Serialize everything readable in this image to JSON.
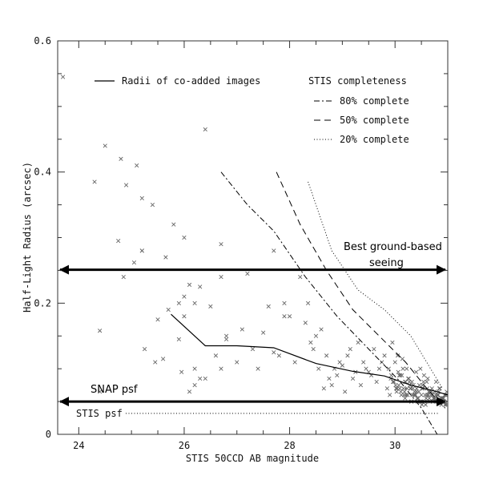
{
  "chart_data": {
    "type": "scatter",
    "xlabel": "STIS 50CCD AB magnitude",
    "ylabel": "Half-Light Radius (arcsec)",
    "xlim": [
      23.6,
      31
    ],
    "ylim": [
      0,
      0.6
    ],
    "x_ticks": [
      24,
      26,
      28,
      30
    ],
    "y_ticks": [
      0,
      0.2,
      0.4,
      0.6
    ],
    "grid": false,
    "legend": {
      "position": "top-right",
      "radii_label": "Radii of co-added images",
      "completeness_title": "STIS completeness",
      "entries": [
        {
          "label": "80% complete",
          "style": "dashdot"
        },
        {
          "label": "50% complete",
          "style": "dashed"
        },
        {
          "label": "20% complete",
          "style": "dotted"
        }
      ]
    },
    "series": [
      {
        "name": "Radii of co-added images",
        "style": "solid",
        "x": [
          25.75,
          26.4,
          27.0,
          27.7,
          28.5,
          29.2,
          29.8,
          30.3,
          30.8,
          31.0
        ],
        "y": [
          0.183,
          0.135,
          0.135,
          0.132,
          0.108,
          0.096,
          0.089,
          0.075,
          0.065,
          0.06
        ]
      },
      {
        "name": "80% complete",
        "style": "dashdot",
        "x": [
          26.7,
          27.2,
          27.7,
          28.3,
          28.9,
          29.5,
          30.1,
          30.5,
          30.8
        ],
        "y": [
          0.4,
          0.35,
          0.31,
          0.24,
          0.18,
          0.13,
          0.08,
          0.04,
          0.0
        ]
      },
      {
        "name": "50% complete",
        "style": "dashed",
        "x": [
          27.75,
          28.2,
          28.7,
          29.2,
          29.7,
          30.2,
          30.6,
          30.95
        ],
        "y": [
          0.4,
          0.32,
          0.25,
          0.19,
          0.15,
          0.11,
          0.07,
          0.04
        ]
      },
      {
        "name": "20% complete",
        "style": "dotted",
        "x": [
          28.35,
          28.8,
          29.3,
          29.8,
          30.3,
          30.6,
          30.9
        ],
        "y": [
          0.385,
          0.28,
          0.22,
          0.19,
          0.15,
          0.11,
          0.07
        ]
      }
    ],
    "reference_lines": [
      {
        "label": "Best ground-based seeing",
        "y": 0.251,
        "style": "double-arrow"
      },
      {
        "label": "SNAP psf",
        "y": 0.05,
        "style": "double-arrow"
      },
      {
        "label": "STIS psf",
        "y": 0.032,
        "style": "dotted"
      }
    ],
    "points_x": [
      23.7,
      24.3,
      24.5,
      24.8,
      25.1,
      25.2,
      24.9,
      25.4,
      25.8,
      26.0,
      26.4,
      26.7,
      24.4,
      24.75,
      25.05,
      25.2,
      25.5,
      25.65,
      25.9,
      26.1,
      26.3,
      26.7,
      27.2,
      27.6,
      24.85,
      25.2,
      25.7,
      26.0,
      26.2,
      26.5,
      26.8,
      25.45,
      25.25,
      25.6,
      25.9,
      26.2,
      26.6,
      27.0,
      27.4,
      27.8,
      26.2,
      26.4,
      26.1,
      26.8,
      27.1,
      27.5,
      27.9,
      26.0,
      25.95,
      26.3,
      26.7,
      27.3,
      27.7,
      24.4,
      27.7,
      28.2,
      27.9,
      28.3,
      28.0,
      28.35,
      28.1,
      28.4,
      28.5,
      28.7,
      28.6,
      29.3,
      29.0,
      29.6,
      28.9,
      29.4,
      28.8,
      29.8,
      29.2,
      29.5,
      28.55,
      29.1,
      29.7,
      28.45,
      29.95,
      28.75,
      29.35,
      29.55,
      29.05,
      29.85,
      29.25,
      28.95,
      29.65,
      28.65,
      29.45,
      29.9,
      29.15,
      29.75,
      28.85,
      30.0,
      30.1,
      30.2,
      30.3,
      30.4,
      30.5,
      30.6,
      30.7,
      30.8,
      30.9,
      30.05,
      30.15,
      30.25,
      30.35,
      30.45,
      30.55,
      30.65,
      30.75,
      30.85,
      30.95,
      30.02,
      30.12,
      30.22,
      30.32,
      30.42,
      30.52,
      30.62,
      30.72,
      30.82,
      30.92,
      30.08,
      30.18,
      30.28,
      30.38,
      30.48,
      30.58,
      30.68,
      30.78,
      30.88,
      30.98,
      29.92,
      30.04,
      30.14,
      30.24,
      30.34,
      30.44,
      30.54,
      30.64,
      30.74,
      30.84,
      30.94,
      29.88,
      29.98,
      30.06,
      30.16,
      30.26,
      30.36,
      30.46,
      30.56,
      30.66,
      30.76,
      30.86,
      30.96,
      30.03,
      30.13,
      30.23,
      30.33,
      30.43,
      30.53,
      30.63,
      30.73,
      30.83,
      30.93,
      30.07,
      30.17,
      30.27,
      30.37,
      30.47,
      30.57,
      30.67,
      30.77,
      30.87,
      30.97,
      29.93,
      30.09,
      30.19,
      30.29,
      30.39,
      30.49,
      30.59,
      30.69,
      30.79,
      30.89,
      30.99,
      29.96,
      30.11,
      30.21,
      30.31,
      30.41,
      30.51,
      30.61,
      30.71,
      30.81,
      30.91,
      30.01,
      30.19,
      30.41,
      30.61,
      30.81,
      30.21,
      30.51,
      30.71,
      30.91,
      30.31
    ],
    "points_y": [
      0.545,
      0.385,
      0.44,
      0.42,
      0.41,
      0.36,
      0.38,
      0.35,
      0.32,
      0.3,
      0.465,
      0.29,
      0.158,
      0.295,
      0.262,
      0.28,
      0.175,
      0.27,
      0.2,
      0.228,
      0.225,
      0.24,
      0.245,
      0.195,
      0.24,
      0.28,
      0.19,
      0.21,
      0.2,
      0.195,
      0.15,
      0.11,
      0.13,
      0.115,
      0.145,
      0.1,
      0.12,
      0.11,
      0.1,
      0.12,
      0.075,
      0.085,
      0.065,
      0.145,
      0.16,
      0.155,
      0.18,
      0.18,
      0.095,
      0.085,
      0.1,
      0.13,
      0.125,
      0.065,
      0.28,
      0.24,
      0.2,
      0.17,
      0.18,
      0.2,
      0.11,
      0.14,
      0.15,
      0.12,
      0.16,
      0.14,
      0.105,
      0.13,
      0.09,
      0.11,
      0.075,
      0.12,
      0.085,
      0.095,
      0.1,
      0.12,
      0.1,
      0.13,
      0.14,
      0.085,
      0.075,
      0.09,
      0.065,
      0.07,
      0.095,
      0.11,
      0.08,
      0.07,
      0.1,
      0.06,
      0.13,
      0.11,
      0.1,
      0.11,
      0.09,
      0.08,
      0.07,
      0.095,
      0.06,
      0.08,
      0.07,
      0.06,
      0.05,
      0.12,
      0.1,
      0.085,
      0.075,
      0.065,
      0.09,
      0.055,
      0.065,
      0.07,
      0.045,
      0.07,
      0.06,
      0.1,
      0.08,
      0.055,
      0.075,
      0.085,
      0.05,
      0.06,
      0.055,
      0.09,
      0.065,
      0.075,
      0.06,
      0.1,
      0.045,
      0.06,
      0.08,
      0.045,
      0.065,
      0.085,
      0.07,
      0.115,
      0.06,
      0.07,
      0.055,
      0.08,
      0.065,
      0.055,
      0.07,
      0.06,
      0.1,
      0.08,
      0.095,
      0.07,
      0.085,
      0.06,
      0.075,
      0.05,
      0.065,
      0.055,
      0.05,
      0.06,
      0.065,
      0.09,
      0.07,
      0.06,
      0.05,
      0.07,
      0.06,
      0.055,
      0.065,
      0.05,
      0.075,
      0.06,
      0.08,
      0.065,
      0.05,
      0.06,
      0.05,
      0.06,
      0.055,
      0.045,
      0.09,
      0.07,
      0.055,
      0.07,
      0.06,
      0.05,
      0.055,
      0.065,
      0.05,
      0.055,
      0.05,
      0.08,
      0.065,
      0.06,
      0.05,
      0.07,
      0.045,
      0.06,
      0.05,
      0.06,
      0.055,
      0.075,
      0.08,
      0.065,
      0.07,
      0.05,
      0.06,
      0.07,
      0.06,
      0.055,
      0.05
    ]
  }
}
